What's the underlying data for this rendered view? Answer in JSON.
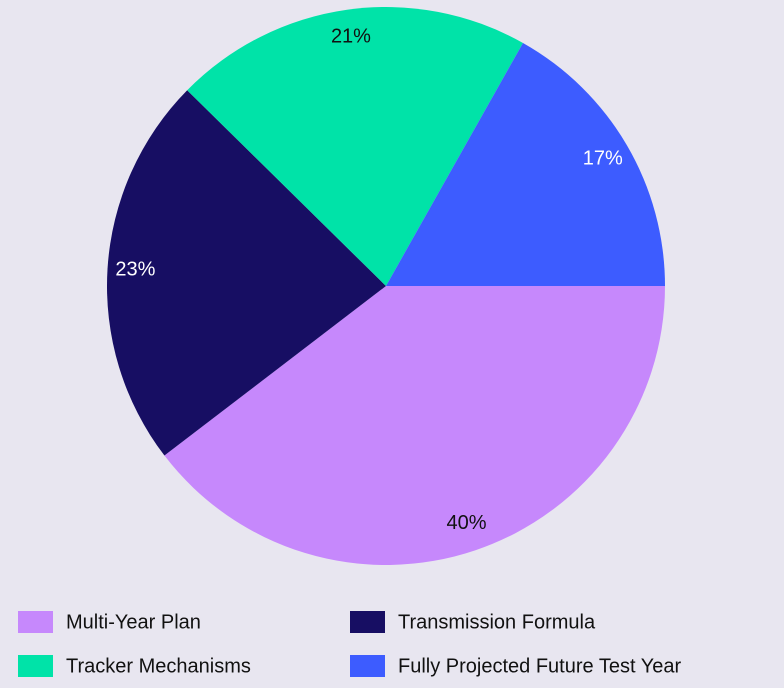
{
  "chart_data": {
    "type": "pie",
    "categories": [
      "Multi-Year Plan",
      "Transmission Formula",
      "Tracker Mechanisms",
      "Fully Projected Future Test Year"
    ],
    "values": [
      40,
      23,
      21,
      17
    ],
    "value_labels": [
      "40%",
      "23%",
      "21%",
      "17%"
    ],
    "colors": [
      "#c688fc",
      "#170e63",
      "#00e3a8",
      "#3d5cff"
    ],
    "legend": "bottom"
  }
}
